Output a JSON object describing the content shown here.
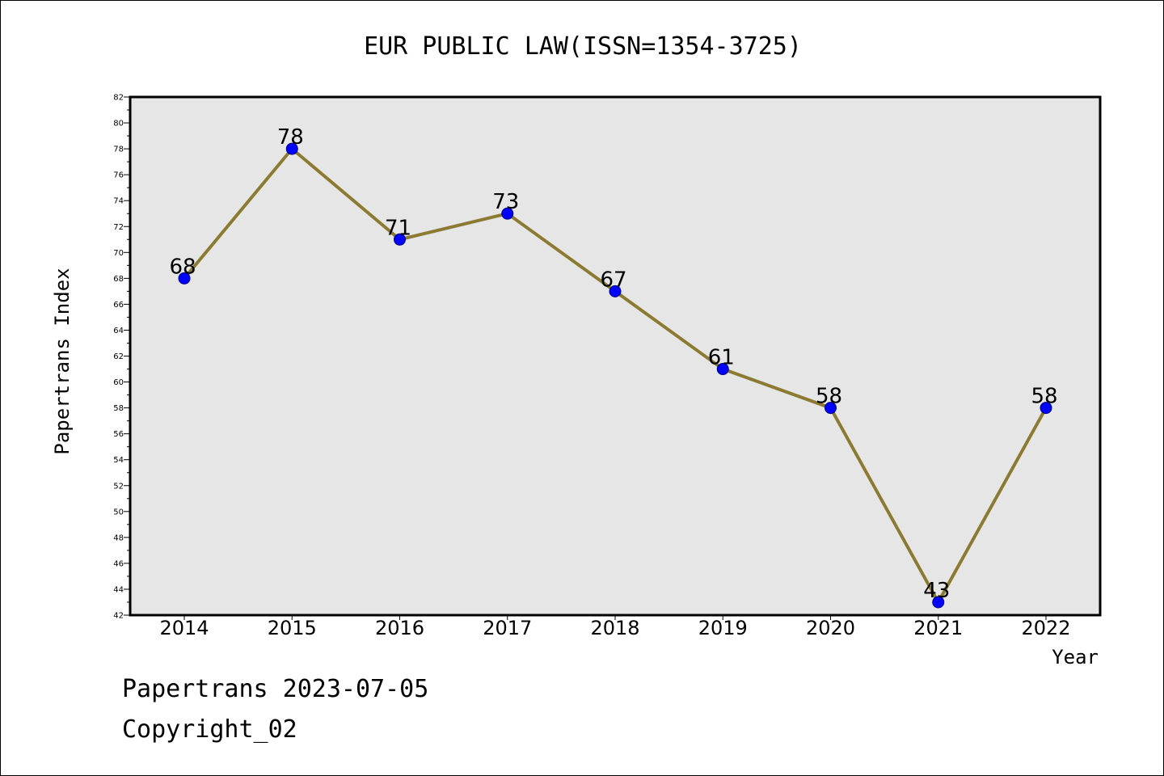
{
  "colors": {
    "plot_background": "#e6e6e6",
    "line": "#8b7a32",
    "marker_fill": "#0000ff",
    "marker_stroke": "#000080",
    "frame": "#000000"
  },
  "footer": {
    "line1": "Papertrans 2023-07-05",
    "line2": "Copyright_02"
  },
  "chart_data": {
    "type": "line",
    "title": "EUR PUBLIC LAW(ISSN=1354-3725)",
    "xlabel": "Year",
    "ylabel": "Papertrans Index",
    "categories": [
      "2014",
      "2015",
      "2016",
      "2017",
      "2018",
      "2019",
      "2020",
      "2021",
      "2022"
    ],
    "series": [
      {
        "values": [
          68,
          78,
          71,
          73,
          67,
          61,
          58,
          43,
          58
        ]
      }
    ],
    "data_labels": [
      "68",
      "78",
      "71",
      "73",
      "67",
      "61",
      "58",
      "43",
      "58"
    ],
    "ylim": [
      42,
      82
    ],
    "yticks": [
      42,
      44,
      46,
      48,
      50,
      52,
      54,
      56,
      58,
      60,
      62,
      64,
      66,
      68,
      70,
      72,
      74,
      76,
      78,
      80,
      82
    ],
    "grid": false,
    "legend": "none"
  }
}
